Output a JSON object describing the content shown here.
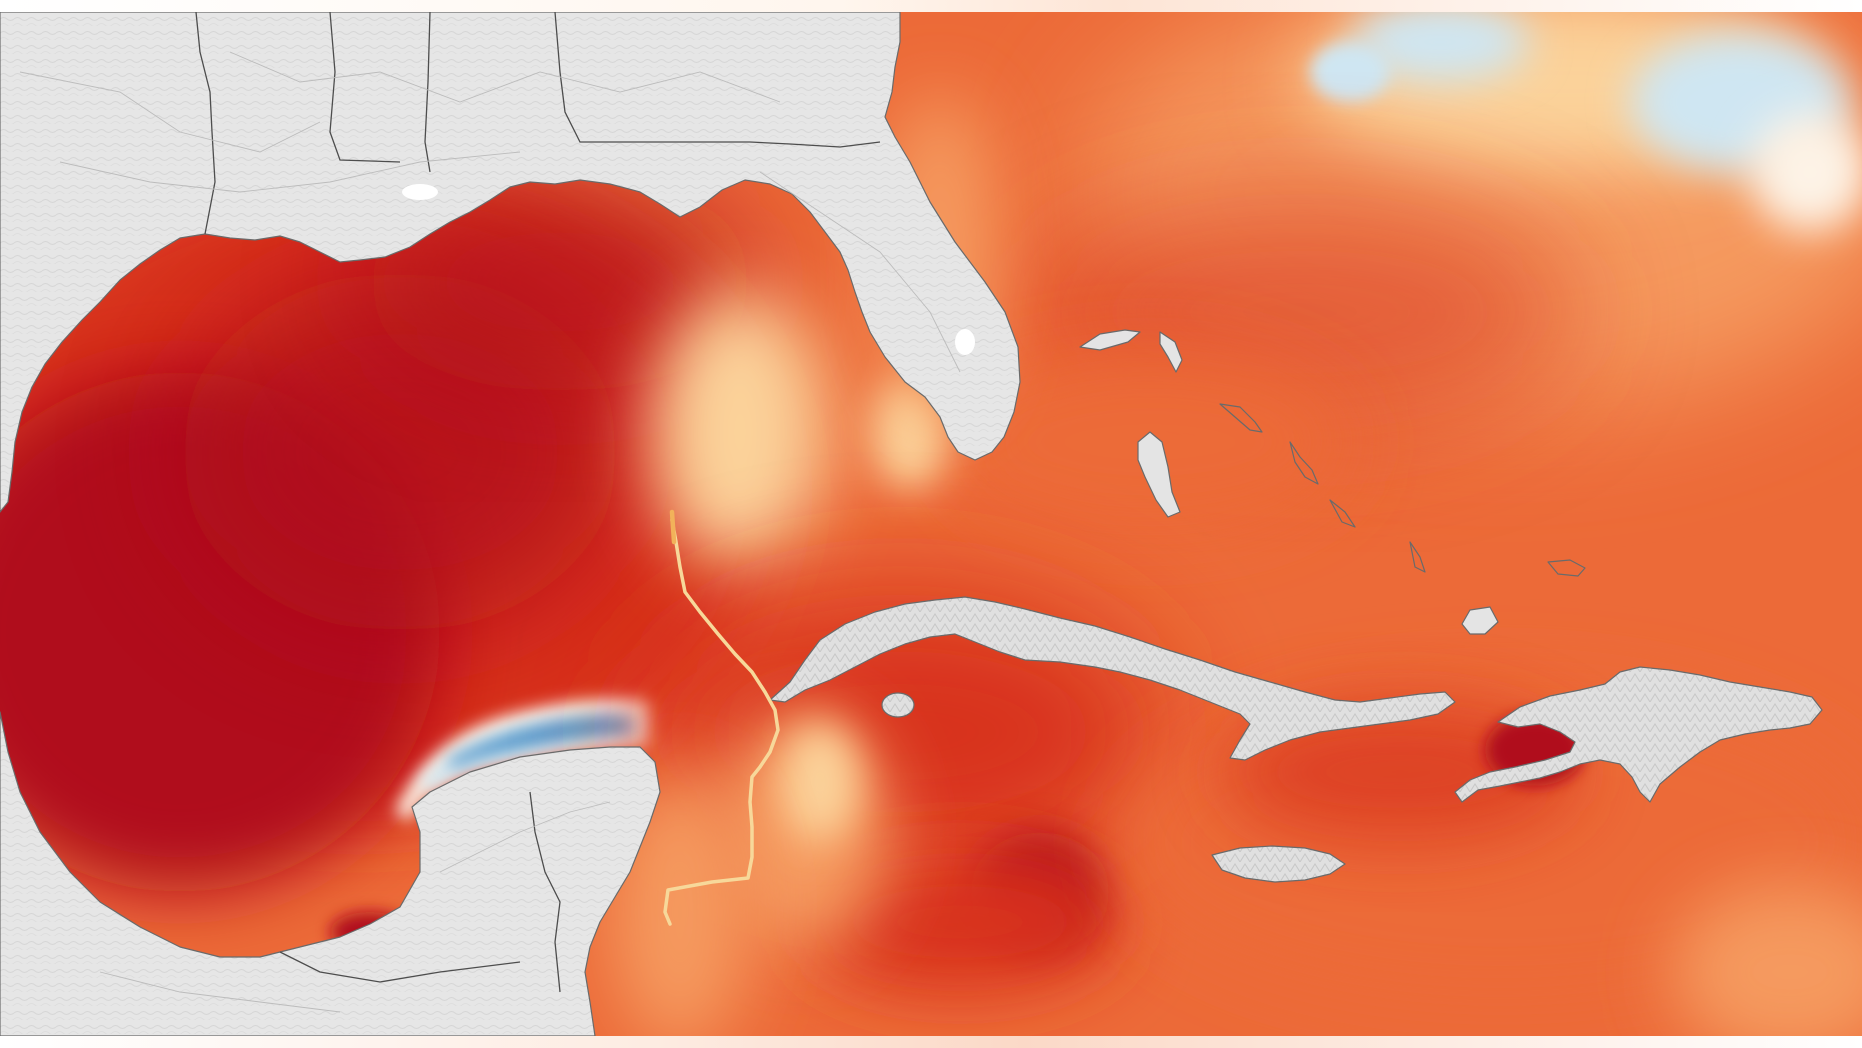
{
  "map": {
    "colors": {
      "sst_very_hot": "#b0101f",
      "sst_hot": "#d8331f",
      "sst_warm": "#ec6a38",
      "sst_mild": "#f59a5e",
      "sst_cool_warm": "#fbd29a",
      "sst_neutral": "#fdf3e6",
      "sst_cool": "#cfe6f2",
      "sst_cold": "#4d93c8",
      "land": "#e4e4e4",
      "land_shade": "#cfcfcf",
      "border": "#555555",
      "roads": "#bdbdbd",
      "hurricane_track": "#f7d89a"
    },
    "features": [
      "gulf-of-mexico",
      "caribbean-sea",
      "atlantic-ocean",
      "florida",
      "cuba",
      "hispaniola",
      "jamaica",
      "bahamas",
      "yucatan-peninsula",
      "hurricane-track"
    ]
  }
}
